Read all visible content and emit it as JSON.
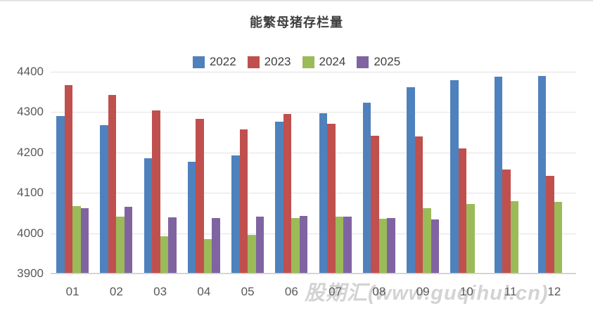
{
  "chart_data": {
    "type": "bar",
    "title": "能繁母猪存栏量",
    "categories": [
      "01",
      "02",
      "03",
      "04",
      "05",
      "06",
      "07",
      "08",
      "09",
      "10",
      "11",
      "12"
    ],
    "series": [
      {
        "name": "2022",
        "color": "#4F81BD",
        "values": [
          4290,
          4268,
          4185,
          4177,
          4192,
          4277,
          4298,
          4324,
          4362,
          4379,
          4388,
          4390
        ]
      },
      {
        "name": "2023",
        "color": "#C0504D",
        "values": [
          4367,
          4343,
          4305,
          4284,
          4258,
          4296,
          4271,
          4241,
          4240,
          4210,
          4158,
          4142
        ]
      },
      {
        "name": "2024",
        "color": "#9BBB59",
        "values": [
          4067,
          4042,
          3992,
          3986,
          3996,
          4038,
          4041,
          4036,
          4062,
          4073,
          4080,
          4078
        ]
      },
      {
        "name": "2025",
        "color": "#8064A2",
        "values": [
          4062,
          4066,
          4039,
          4038,
          4042,
          4043,
          4042,
          4038,
          4035,
          null,
          null,
          null
        ]
      }
    ],
    "xlabel": "",
    "ylabel": "",
    "ylim": [
      3900,
      4400
    ],
    "ytick_step": 100,
    "yticks": [
      "4400",
      "4300",
      "4200",
      "4100",
      "4000",
      "3900"
    ],
    "grid": true,
    "legend_position": "top-center"
  },
  "watermark": {
    "text": "股期汇(www.guqihui.cn)"
  }
}
